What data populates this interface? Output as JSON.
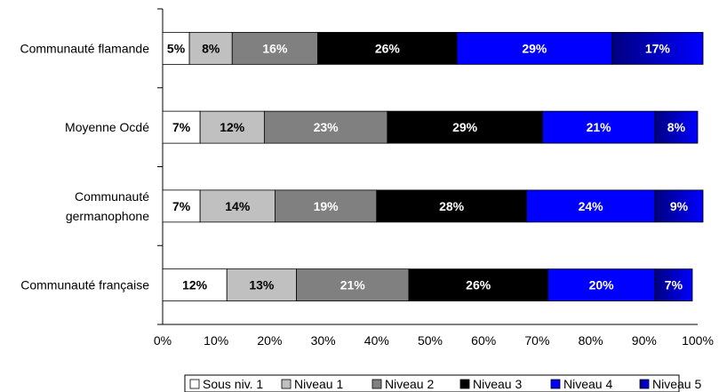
{
  "chart_data": {
    "type": "bar",
    "orientation": "horizontal",
    "stacked": true,
    "stack_normalized_percent": true,
    "categories": [
      [
        "Communauté flamande"
      ],
      [
        "Moyenne Ocdé"
      ],
      [
        "Communauté",
        "germanophone"
      ],
      [
        "Communauté française"
      ]
    ],
    "series": [
      {
        "name": "Sous niv. 1",
        "values": [
          5,
          7,
          7,
          12
        ],
        "color": "#ffffff",
        "label_color": "#000000"
      },
      {
        "name": "Niveau 1",
        "values": [
          8,
          12,
          14,
          13
        ],
        "color": "#c0c0c0",
        "label_color": "#000000"
      },
      {
        "name": "Niveau 2",
        "values": [
          16,
          23,
          19,
          21
        ],
        "color": "#808080",
        "label_color": "#ffffff"
      },
      {
        "name": "Niveau 3",
        "values": [
          26,
          29,
          28,
          26
        ],
        "color": "#000000",
        "label_color": "#ffffff"
      },
      {
        "name": "Niveau 4",
        "values": [
          29,
          21,
          24,
          20
        ],
        "color": "#0000ff",
        "label_color": "#ffffff"
      },
      {
        "name": "Niveau 5",
        "values": [
          17,
          8,
          9,
          7
        ],
        "color": "#000080",
        "gradient_to": "#0000ff",
        "label_color": "#ffffff"
      }
    ],
    "x_ticks": [
      "0%",
      "10%",
      "20%",
      "30%",
      "40%",
      "50%",
      "60%",
      "70%",
      "80%",
      "90%",
      "100%"
    ],
    "xlim": [
      0,
      100
    ],
    "title": "",
    "xlabel": "",
    "ylabel": "",
    "grid": false,
    "legend_position": "bottom"
  }
}
